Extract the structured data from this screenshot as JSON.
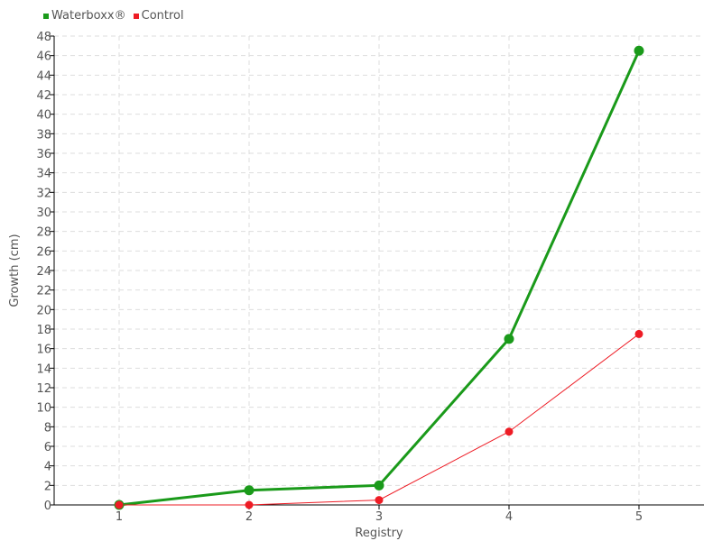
{
  "chart_data": {
    "type": "line",
    "title": "",
    "xlabel": "Registry",
    "ylabel": "Growth (cm)",
    "categories": [
      1,
      2,
      3,
      4,
      5
    ],
    "xlim": [
      0.5,
      5.5
    ],
    "ylim": [
      0,
      48
    ],
    "ytick_step": 2,
    "grid": true,
    "legend_position": "top-left",
    "series": [
      {
        "name": "Waterboxx®",
        "color": "#1a9a1a",
        "values": [
          0,
          1.5,
          2,
          17,
          46.5
        ]
      },
      {
        "name": "Control",
        "color": "#ee1c25",
        "values": [
          0,
          0,
          0.5,
          7.5,
          17.5
        ]
      }
    ]
  }
}
